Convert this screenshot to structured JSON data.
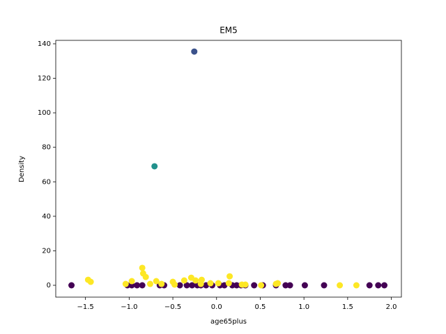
{
  "chart_data": {
    "type": "scatter",
    "title": "EM5",
    "x_label": "age65plus",
    "y_label": "Density",
    "xlim": [
      -1.84,
      2.115
    ],
    "ylim": [
      -6.86,
      142.0
    ],
    "xticks": [
      {
        "value": -1.5,
        "label": "−1.5"
      },
      {
        "value": -1.0,
        "label": "−1.0"
      },
      {
        "value": -0.5,
        "label": "−0.5"
      },
      {
        "value": 0.0,
        "label": "0.0"
      },
      {
        "value": 0.5,
        "label": "0.5"
      },
      {
        "value": 1.0,
        "label": "1.0"
      },
      {
        "value": 1.5,
        "label": "1.5"
      },
      {
        "value": 2.0,
        "label": "2.0"
      }
    ],
    "yticks": [
      0,
      20,
      40,
      60,
      80,
      100,
      120,
      140
    ],
    "series": [
      {
        "color": "#440154",
        "x": [
          -1.66,
          -1.02,
          -0.97,
          -0.91,
          -0.85,
          -0.65,
          -0.6,
          -0.42,
          -0.34,
          -0.28,
          -0.22,
          -0.18,
          -0.12,
          -0.05,
          0.04,
          0.09,
          0.18,
          0.23,
          0.28,
          0.33,
          0.43,
          0.53,
          0.68,
          0.79,
          0.84,
          1.01,
          1.23,
          1.75,
          1.85,
          1.92
        ],
        "values": [
          0,
          0,
          0,
          0,
          0,
          0,
          0,
          0,
          0,
          0,
          0,
          0,
          0,
          0,
          0,
          0,
          0,
          0,
          0,
          0,
          0,
          0,
          0,
          0,
          0,
          0,
          0,
          0,
          0,
          0
        ]
      },
      {
        "color": "#fde725",
        "x": [
          -1.47,
          -1.44,
          -1.04,
          -0.97,
          -0.85,
          -0.84,
          -0.81,
          -0.76,
          -0.69,
          -0.63,
          -0.5,
          -0.48,
          -0.37,
          -0.29,
          -0.24,
          -0.17,
          -0.18,
          -0.07,
          0.02,
          0.15,
          0.14,
          0.29,
          0.33,
          0.68,
          0.7,
          1.41,
          1.6,
          0.51
        ],
        "values": [
          3.2,
          2.0,
          0.8,
          2.4,
          10.1,
          6.9,
          4.8,
          0.8,
          2.4,
          0.8,
          2.0,
          0.4,
          2.8,
          4.4,
          2.8,
          3.2,
          0.8,
          1.2,
          1.2,
          5.2,
          1.2,
          0.4,
          0.4,
          0.8,
          1.2,
          0,
          0,
          0
        ]
      },
      {
        "color": "#21918c",
        "x": [
          -0.71
        ],
        "values": [
          69.0
        ]
      },
      {
        "color": "#3b528b",
        "x": [
          -0.255
        ],
        "values": [
          135.5
        ]
      }
    ]
  }
}
